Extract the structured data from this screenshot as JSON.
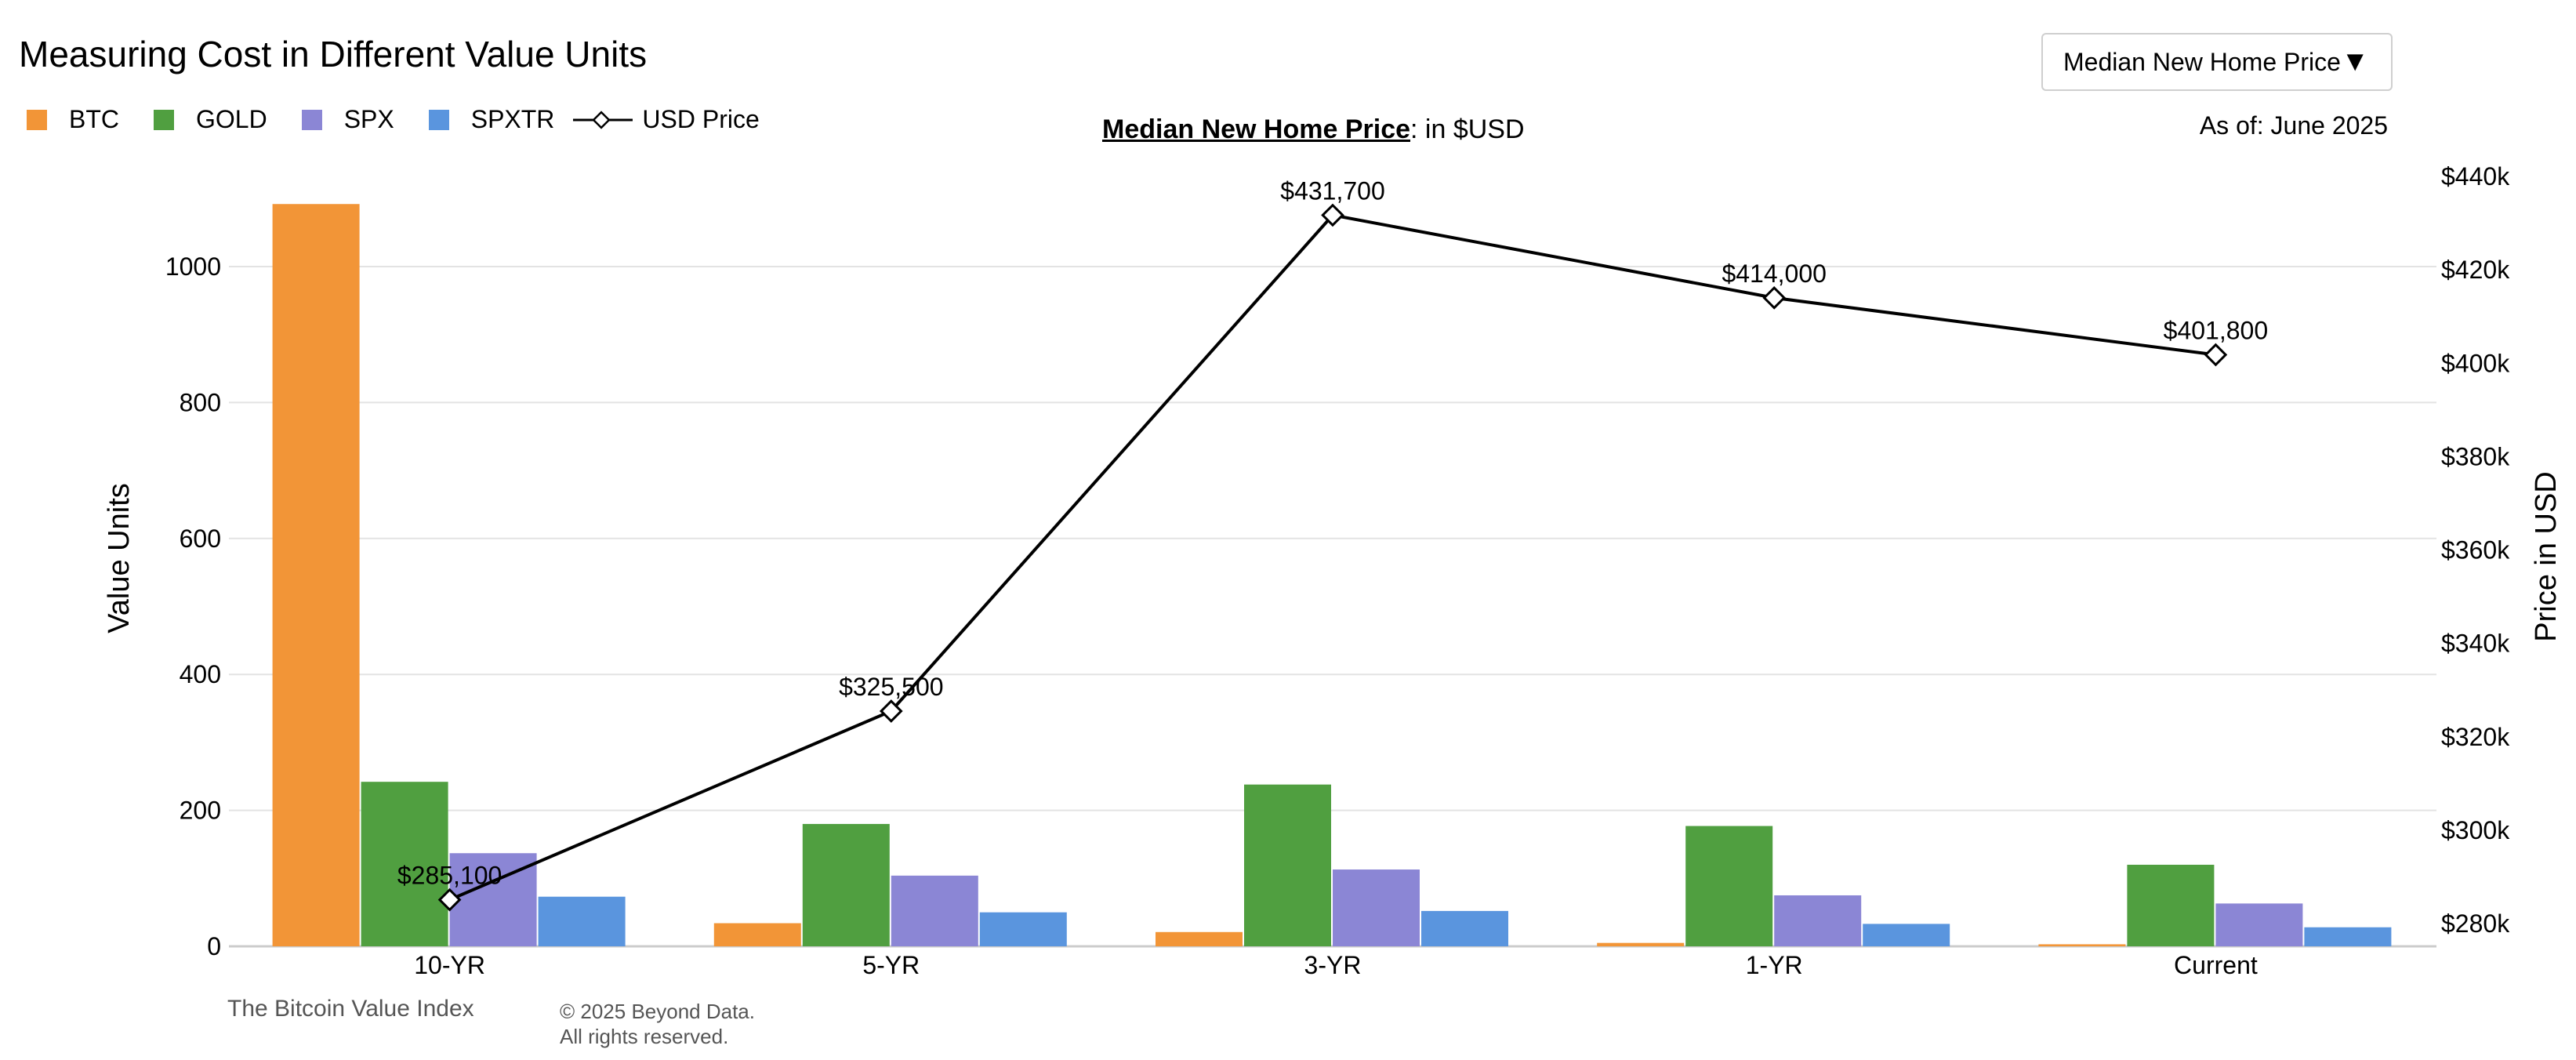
{
  "header": {
    "title": "Measuring Cost in Different Value Units",
    "selector_value": "Median New Home Price",
    "selector_arrow": "▼",
    "as_of": "As of: June 2025"
  },
  "subtitle": {
    "bold": "Median New Home Price",
    "rest": ": in $USD"
  },
  "footer": {
    "source": "The Bitcoin Value Index",
    "copyright_line1": "© 2025 Beyond Data.",
    "copyright_line2": "All rights reserved."
  },
  "legend": [
    {
      "label": "BTC",
      "color": "#f29537",
      "kind": "bar"
    },
    {
      "label": "GOLD",
      "color": "#509f40",
      "kind": "bar"
    },
    {
      "label": "SPX",
      "color": "#8b86d5",
      "kind": "bar"
    },
    {
      "label": "SPXTR",
      "color": "#5a95de",
      "kind": "bar"
    },
    {
      "label": "USD Price",
      "color": "#000000",
      "kind": "line"
    }
  ],
  "chart_data": {
    "type": "bar",
    "categories": [
      "10-YR",
      "5-YR",
      "3-YR",
      "1-YR",
      "Current"
    ],
    "series": [
      {
        "name": "BTC",
        "color": "#f29537",
        "values": [
          1092,
          34,
          21,
          5,
          3
        ]
      },
      {
        "name": "GOLD",
        "color": "#509f40",
        "values": [
          242,
          180,
          238,
          177,
          120
        ]
      },
      {
        "name": "SPX",
        "color": "#8b86d5",
        "values": [
          137,
          104,
          113,
          75,
          63
        ]
      },
      {
        "name": "SPXTR",
        "color": "#5a95de",
        "values": [
          73,
          50,
          52,
          33,
          28
        ]
      }
    ],
    "line_series": {
      "name": "USD Price",
      "color": "#000000",
      "values": [
        285100,
        325500,
        431700,
        414000,
        401800
      ],
      "labels": [
        "$285,100",
        "$325,500",
        "$431,700",
        "$414,000",
        "$401,800"
      ]
    },
    "ylabel": "Value Units",
    "y2label": "Price in USD",
    "ylim": [
      0,
      1100
    ],
    "y_ticks": [
      0,
      200,
      400,
      600,
      800,
      1000
    ],
    "y2lim": [
      275000,
      440000
    ],
    "y2_ticks": [
      280000,
      300000,
      320000,
      340000,
      360000,
      380000,
      400000,
      420000,
      440000
    ],
    "y2_tick_labels": [
      "$280k",
      "$300k",
      "$320k",
      "$340k",
      "$360k",
      "$380k",
      "$400k",
      "$420k",
      "$440k"
    ],
    "grid": true,
    "legend_position": "top-left"
  }
}
